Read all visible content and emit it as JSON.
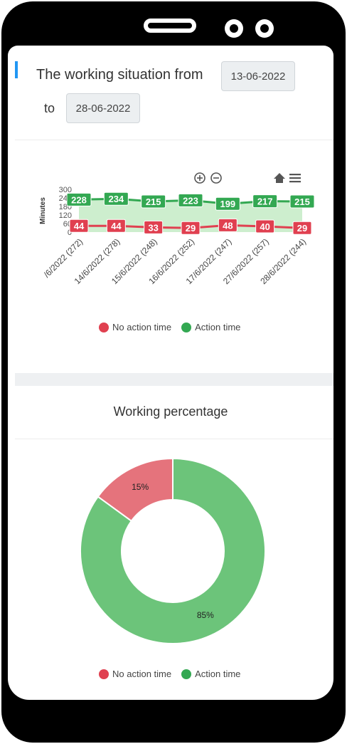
{
  "header": {
    "title_prefix": "The working situation from",
    "from_date": "13-06-2022",
    "to_label": "to",
    "to_date": "28-06-2022"
  },
  "toolbar": {
    "zoom_in_icon": "zoom-in-icon",
    "zoom_out_icon": "zoom-out-icon",
    "home_icon": "home-icon",
    "menu_icon": "menu-icon"
  },
  "colors": {
    "action": "#33a852",
    "no_action": "#e04050",
    "action_area": "#c8ecc9",
    "pie_action": "#6cc47a",
    "pie_no_action": "#e5737c"
  },
  "chart_data": [
    {
      "type": "line",
      "ylabel": "Minutes",
      "ylim": [
        0,
        300
      ],
      "yticks": [
        "0",
        "60",
        "120",
        "180",
        "240",
        "300"
      ],
      "categories": [
        "/6/2022 (272)",
        "14/6/2022 (278)",
        "15/6/2022 (248)",
        "16/6/2022 (252)",
        "17/6/2022 (247)",
        "27/6/2022 (257)",
        "28/6/2022 (244)"
      ],
      "series": [
        {
          "name": "No action time",
          "values": [
            44,
            44,
            33,
            29,
            48,
            40,
            29
          ]
        },
        {
          "name": "Action time",
          "values": [
            228,
            234,
            215,
            223,
            199,
            217,
            215
          ]
        }
      ],
      "legend": [
        "No action time",
        "Action time"
      ],
      "legend_position": "bottom"
    },
    {
      "type": "pie",
      "title": "Working percentage",
      "labels": [
        "No action time",
        "Action time"
      ],
      "values": [
        15,
        85
      ],
      "value_labels": [
        "15%",
        "85%"
      ],
      "legend": [
        "No action time",
        "Action time"
      ],
      "legend_position": "bottom"
    }
  ]
}
